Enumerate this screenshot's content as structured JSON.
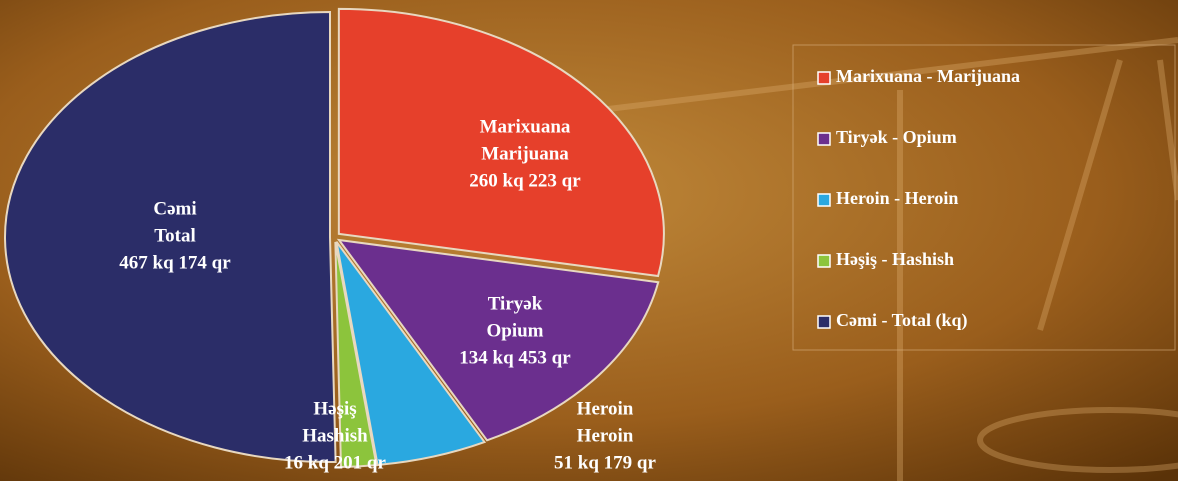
{
  "chart_data": {
    "type": "pie",
    "series": [
      {
        "name": "Marixuana - Marijuana",
        "slice_label": [
          "Marixuana",
          "Marijuana"
        ],
        "value": 260.223,
        "value_label": "260 kq 223 qr",
        "color": "#e6402b"
      },
      {
        "name": "Tiryək - Opium",
        "slice_label": [
          "Tiryək",
          "Opium"
        ],
        "value": 134.453,
        "value_label": "134 kq 453 qr",
        "color": "#6b2f8e"
      },
      {
        "name": "Heroin - Heroin",
        "slice_label": [
          "Heroin",
          "Heroin"
        ],
        "value": 51.179,
        "value_label": "51 kq 179 qr",
        "color": "#2aa8e0"
      },
      {
        "name": "Həşiş - Hashish",
        "slice_label": [
          "Həşiş",
          "Hashish"
        ],
        "value": 16.201,
        "value_label": "16 kq 201 qr",
        "color": "#8cc43c"
      },
      {
        "name": "Cəmi - Total (kq)",
        "slice_label": [
          "Cəmi",
          "Total"
        ],
        "value": 467.174,
        "value_label": "467 kq 174  qr",
        "color": "#2b2d68"
      }
    ],
    "legend": "right"
  }
}
